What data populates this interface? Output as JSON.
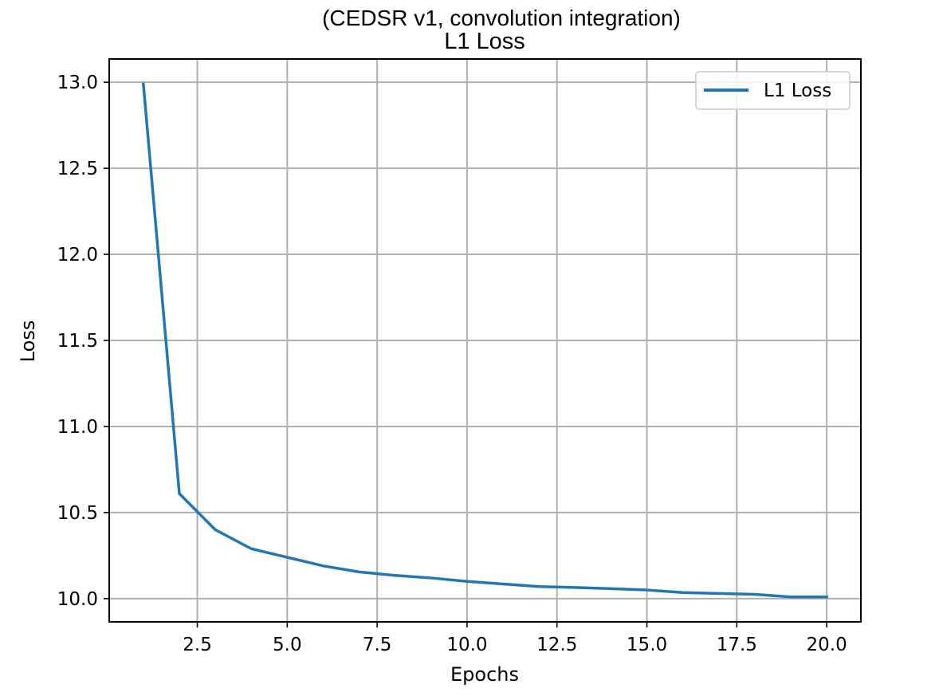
{
  "chart_data": {
    "type": "line",
    "subtitle": "(CEDSR v1, convolution integration)",
    "title": "L1 Loss",
    "xlabel": "Epochs",
    "ylabel": "Loss",
    "xlim": [
      0.05,
      20.95
    ],
    "ylim": [
      9.865,
      13.135
    ],
    "x_ticks": [
      2.5,
      5.0,
      7.5,
      10.0,
      12.5,
      15.0,
      17.5,
      20.0
    ],
    "x_tick_labels": [
      "2.5",
      "5.0",
      "7.5",
      "10.0",
      "12.5",
      "15.0",
      "17.5",
      "20.0"
    ],
    "y_ticks": [
      10.0,
      10.5,
      11.0,
      11.5,
      12.0,
      12.5,
      13.0
    ],
    "y_tick_labels": [
      "10.0",
      "10.5",
      "11.0",
      "11.5",
      "12.0",
      "12.5",
      "13.0"
    ],
    "grid": true,
    "legend_position": "top-right",
    "series": [
      {
        "name": "L1 Loss",
        "color": "#1f77b4",
        "x": [
          1,
          2,
          3,
          4,
          5,
          6,
          7,
          8,
          9,
          10,
          11,
          12,
          13,
          14,
          15,
          16,
          17,
          18,
          19,
          20
        ],
        "y": [
          12.99,
          10.61,
          10.4,
          10.29,
          10.24,
          10.19,
          10.155,
          10.135,
          10.12,
          10.1,
          10.085,
          10.07,
          10.065,
          10.058,
          10.05,
          10.035,
          10.03,
          10.025,
          10.01,
          10.01
        ]
      }
    ]
  }
}
